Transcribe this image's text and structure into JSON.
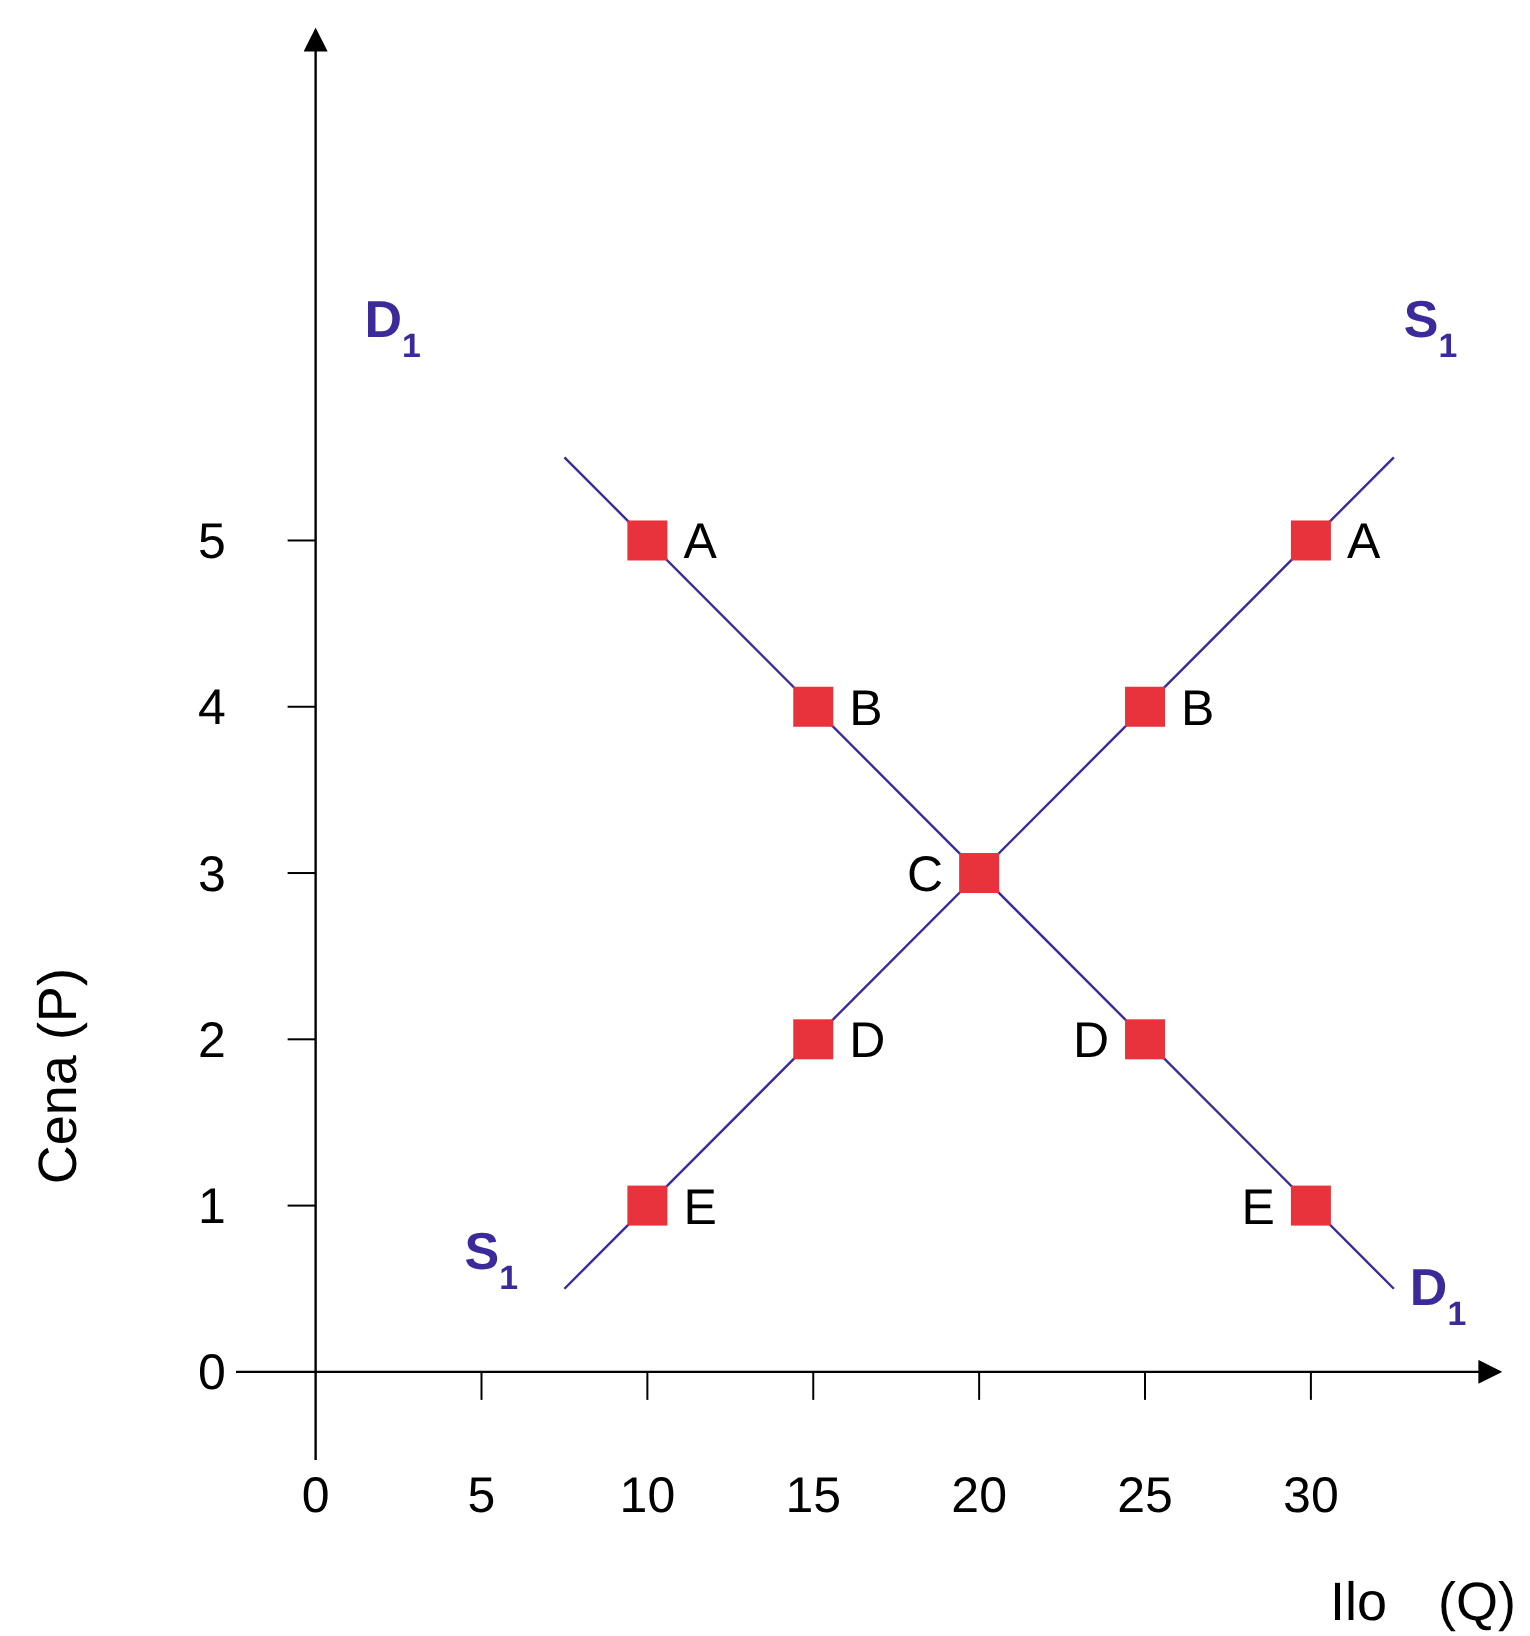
{
  "chart_data": {
    "type": "line",
    "xlabel": "Ilo (Q)",
    "ylabel": "Cena (P)",
    "xlim": [
      -2.4,
      35.7
    ],
    "ylim": [
      -0.53,
      8.07
    ],
    "xticks": [
      0,
      5,
      10,
      15,
      20,
      25,
      30
    ],
    "yticks": [
      0,
      1,
      2,
      3,
      4,
      5
    ],
    "grid": false,
    "series": [
      {
        "name": "D$_{1}$",
        "color": "#3b2a9a",
        "x": [
          7.5,
          32.5
        ],
        "values": [
          5.5,
          0.5
        ]
      },
      {
        "name": "S$_{1}$",
        "color": "#3b2a9a",
        "x": [
          7.5,
          32.5
        ],
        "values": [
          0.5,
          5.5
        ]
      },
      {
        "type": "scatter",
        "color": "#e8323c",
        "marker": "square",
        "x": [
          10,
          15,
          20,
          25,
          30,
          10,
          15,
          25,
          30
        ],
        "values": [
          5,
          4,
          3,
          2,
          1,
          1,
          2,
          4,
          5
        ]
      }
    ],
    "annotations": [
      {
        "text": "A",
        "x": 10,
        "y": 5
      },
      {
        "text": "B",
        "x": 15,
        "y": 4
      },
      {
        "text": "C",
        "x": 20,
        "y": 3
      },
      {
        "text": "D",
        "x": 25,
        "y": 2
      },
      {
        "text": "E",
        "x": 30,
        "y": 1
      },
      {
        "text": "E",
        "x": 10,
        "y": 1
      },
      {
        "text": "D",
        "x": 15,
        "y": 2
      },
      {
        "text": "B",
        "x": 25,
        "y": 4
      },
      {
        "text": "A",
        "x": 30,
        "y": 5
      }
    ]
  }
}
